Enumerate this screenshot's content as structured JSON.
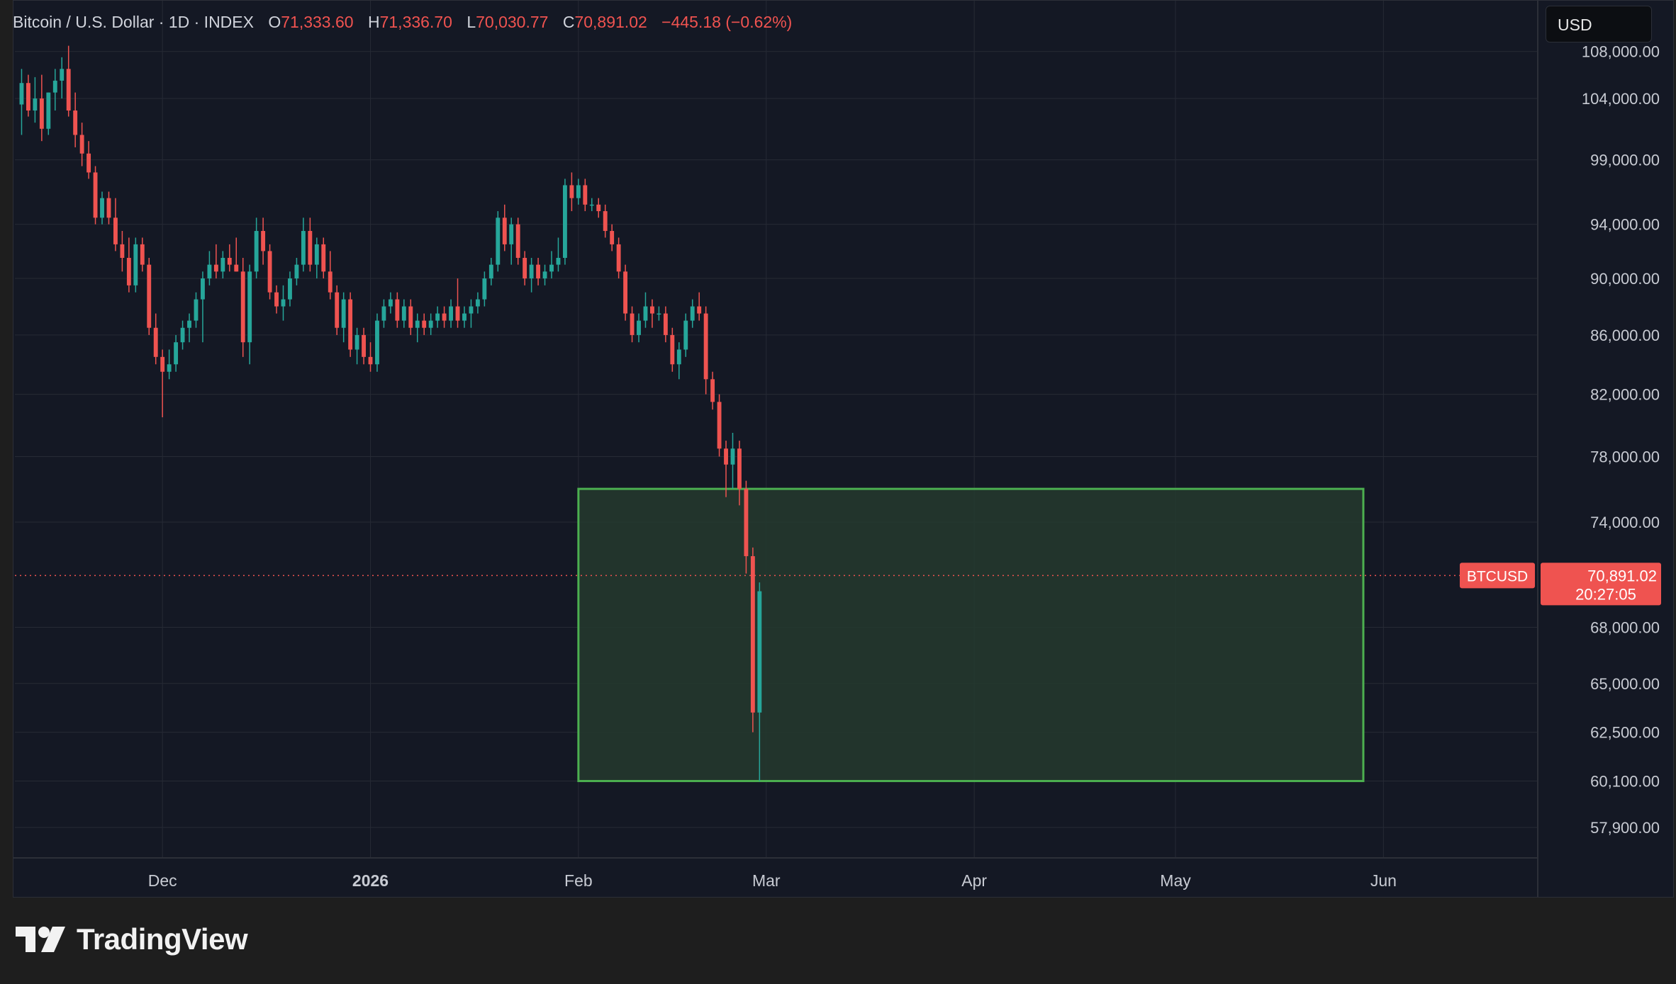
{
  "legend": {
    "symbol_text": "Bitcoin / U.S. Dollar · 1D · INDEX",
    "o_label": "O",
    "o_value": "71,333.60",
    "h_label": "H",
    "h_value": "71,336.70",
    "l_label": "L",
    "l_value": "70,030.77",
    "c_label": "C",
    "c_value": "70,891.02",
    "change": "−445.18 (−0.62%)"
  },
  "currency": "USD",
  "brand": "TradingView",
  "colors": {
    "up": "#26a69a",
    "down": "#ef5350",
    "background": "#141824",
    "zone_fill": "#243a2e",
    "zone_border": "#4caf50"
  },
  "chart_data": {
    "type": "candlestick",
    "symbol": "BTCUSD",
    "interval": "1D",
    "x_tick_labels": [
      "Dec",
      "2026",
      "Feb",
      "Mar",
      "Apr",
      "May",
      "Jun"
    ],
    "x_ticks": [
      "2025-12-01",
      "2026-01-01",
      "2026-02-01",
      "2026-03-01",
      "2026-04-01",
      "2026-05-01",
      "2026-06-01"
    ],
    "y_tick_labels": [
      "108,000.00",
      "104,000.00",
      "99,000.00",
      "94,000.00",
      "90,000.00",
      "86,000.00",
      "82,000.00",
      "78,000.00",
      "74,000.00",
      "68,000.00",
      "65,000.00",
      "62,500.00",
      "60,100.00",
      "57,900.00"
    ],
    "y_ticks": [
      108000,
      104000,
      99000,
      94000,
      90000,
      86000,
      82000,
      78000,
      74000,
      68000,
      65000,
      62500,
      60100,
      57900
    ],
    "y_scale": "log",
    "ylim": [
      56500,
      112500
    ],
    "xlim": [
      "2025-11-09",
      "2026-06-24"
    ],
    "grid": true,
    "last_price": "70,891.02",
    "countdown": "20:27:05",
    "price_label": "BTCUSD",
    "range_box": {
      "start": "2026-02-01",
      "end": "2026-05-29",
      "high": 76000,
      "low": 60100
    },
    "candles": [
      {
        "d": "2025-11-10",
        "o": 103500,
        "h": 106500,
        "l": 101000,
        "c": 105300
      },
      {
        "d": "2025-11-11",
        "o": 105300,
        "h": 106000,
        "l": 102500,
        "c": 103000
      },
      {
        "d": "2025-11-12",
        "o": 103000,
        "h": 105800,
        "l": 102000,
        "c": 104000
      },
      {
        "d": "2025-11-13",
        "o": 104000,
        "h": 106000,
        "l": 100500,
        "c": 101500
      },
      {
        "d": "2025-11-14",
        "o": 101500,
        "h": 104500,
        "l": 101000,
        "c": 104500
      },
      {
        "d": "2025-11-15",
        "o": 104500,
        "h": 106500,
        "l": 103000,
        "c": 105500
      },
      {
        "d": "2025-11-16",
        "o": 105500,
        "h": 107500,
        "l": 104000,
        "c": 106500
      },
      {
        "d": "2025-11-17",
        "o": 106500,
        "h": 108500,
        "l": 102500,
        "c": 103000
      },
      {
        "d": "2025-11-18",
        "o": 103000,
        "h": 104500,
        "l": 100000,
        "c": 101000
      },
      {
        "d": "2025-11-19",
        "o": 101000,
        "h": 102000,
        "l": 98500,
        "c": 99500
      },
      {
        "d": "2025-11-20",
        "o": 99500,
        "h": 100500,
        "l": 97500,
        "c": 98000
      },
      {
        "d": "2025-11-21",
        "o": 98000,
        "h": 98500,
        "l": 94000,
        "c": 94500
      },
      {
        "d": "2025-11-22",
        "o": 94500,
        "h": 96500,
        "l": 94000,
        "c": 96000
      },
      {
        "d": "2025-11-23",
        "o": 96000,
        "h": 96500,
        "l": 94000,
        "c": 94500
      },
      {
        "d": "2025-11-24",
        "o": 94500,
        "h": 96000,
        "l": 92000,
        "c": 92500
      },
      {
        "d": "2025-11-25",
        "o": 92500,
        "h": 93500,
        "l": 90500,
        "c": 91500
      },
      {
        "d": "2025-11-26",
        "o": 91500,
        "h": 93000,
        "l": 89000,
        "c": 89500
      },
      {
        "d": "2025-11-27",
        "o": 89500,
        "h": 93000,
        "l": 89000,
        "c": 92500
      },
      {
        "d": "2025-11-28",
        "o": 92500,
        "h": 93000,
        "l": 90500,
        "c": 91000
      },
      {
        "d": "2025-11-29",
        "o": 91000,
        "h": 91500,
        "l": 86000,
        "c": 86500
      },
      {
        "d": "2025-11-30",
        "o": 86500,
        "h": 87500,
        "l": 84000,
        "c": 84500
      },
      {
        "d": "2025-12-01",
        "o": 84500,
        "h": 85000,
        "l": 80500,
        "c": 83500
      },
      {
        "d": "2025-12-02",
        "o": 83500,
        "h": 85000,
        "l": 83000,
        "c": 84000
      },
      {
        "d": "2025-12-03",
        "o": 84000,
        "h": 86000,
        "l": 83500,
        "c": 85500
      },
      {
        "d": "2025-12-04",
        "o": 85500,
        "h": 87000,
        "l": 85000,
        "c": 86500
      },
      {
        "d": "2025-12-05",
        "o": 86500,
        "h": 87500,
        "l": 85500,
        "c": 87000
      },
      {
        "d": "2025-12-06",
        "o": 87000,
        "h": 89000,
        "l": 86500,
        "c": 88500
      },
      {
        "d": "2025-12-07",
        "o": 88500,
        "h": 90500,
        "l": 85500,
        "c": 90000
      },
      {
        "d": "2025-12-08",
        "o": 90000,
        "h": 92000,
        "l": 89500,
        "c": 91000
      },
      {
        "d": "2025-12-09",
        "o": 91000,
        "h": 92500,
        "l": 90000,
        "c": 90500
      },
      {
        "d": "2025-12-10",
        "o": 90500,
        "h": 92000,
        "l": 90000,
        "c": 91500
      },
      {
        "d": "2025-12-11",
        "o": 91500,
        "h": 92500,
        "l": 90500,
        "c": 91000
      },
      {
        "d": "2025-12-12",
        "o": 91000,
        "h": 93000,
        "l": 90500,
        "c": 90500
      },
      {
        "d": "2025-12-13",
        "o": 90500,
        "h": 91500,
        "l": 84500,
        "c": 85500
      },
      {
        "d": "2025-12-14",
        "o": 85500,
        "h": 91000,
        "l": 84000,
        "c": 90500
      },
      {
        "d": "2025-12-15",
        "o": 90500,
        "h": 94500,
        "l": 90000,
        "c": 93500
      },
      {
        "d": "2025-12-16",
        "o": 93500,
        "h": 94500,
        "l": 91000,
        "c": 92000
      },
      {
        "d": "2025-12-17",
        "o": 92000,
        "h": 92500,
        "l": 88500,
        "c": 89000
      },
      {
        "d": "2025-12-18",
        "o": 89000,
        "h": 89500,
        "l": 87500,
        "c": 88000
      },
      {
        "d": "2025-12-19",
        "o": 88000,
        "h": 89500,
        "l": 87000,
        "c": 88500
      },
      {
        "d": "2025-12-20",
        "o": 88500,
        "h": 90500,
        "l": 88000,
        "c": 90000
      },
      {
        "d": "2025-12-21",
        "o": 90000,
        "h": 91500,
        "l": 89500,
        "c": 91000
      },
      {
        "d": "2025-12-22",
        "o": 91000,
        "h": 94500,
        "l": 90500,
        "c": 93500
      },
      {
        "d": "2025-12-23",
        "o": 93500,
        "h": 94500,
        "l": 90500,
        "c": 91000
      },
      {
        "d": "2025-12-24",
        "o": 91000,
        "h": 93000,
        "l": 90000,
        "c": 92500
      },
      {
        "d": "2025-12-25",
        "o": 92500,
        "h": 93000,
        "l": 90000,
        "c": 90500
      },
      {
        "d": "2025-12-26",
        "o": 90500,
        "h": 92000,
        "l": 88500,
        "c": 89000
      },
      {
        "d": "2025-12-27",
        "o": 89000,
        "h": 89500,
        "l": 86000,
        "c": 86500
      },
      {
        "d": "2025-12-28",
        "o": 86500,
        "h": 89000,
        "l": 85500,
        "c": 88500
      },
      {
        "d": "2025-12-29",
        "o": 88500,
        "h": 89000,
        "l": 84500,
        "c": 85000
      },
      {
        "d": "2025-12-30",
        "o": 85000,
        "h": 86500,
        "l": 84000,
        "c": 86000
      },
      {
        "d": "2025-12-31",
        "o": 86000,
        "h": 86500,
        "l": 84000,
        "c": 84500
      },
      {
        "d": "2026-01-01",
        "o": 84500,
        "h": 85500,
        "l": 83500,
        "c": 84000
      },
      {
        "d": "2026-01-02",
        "o": 84000,
        "h": 87500,
        "l": 83500,
        "c": 87000
      },
      {
        "d": "2026-01-03",
        "o": 87000,
        "h": 88500,
        "l": 86500,
        "c": 88000
      },
      {
        "d": "2026-01-04",
        "o": 88000,
        "h": 89000,
        "l": 87500,
        "c": 88500
      },
      {
        "d": "2026-01-05",
        "o": 88500,
        "h": 89000,
        "l": 86500,
        "c": 87000
      },
      {
        "d": "2026-01-06",
        "o": 87000,
        "h": 88500,
        "l": 86500,
        "c": 88000
      },
      {
        "d": "2026-01-07",
        "o": 88000,
        "h": 88500,
        "l": 86000,
        "c": 86500
      },
      {
        "d": "2026-01-08",
        "o": 86500,
        "h": 87500,
        "l": 85500,
        "c": 87000
      },
      {
        "d": "2026-01-09",
        "o": 87000,
        "h": 87500,
        "l": 86000,
        "c": 86500
      },
      {
        "d": "2026-01-10",
        "o": 86500,
        "h": 87500,
        "l": 86000,
        "c": 87000
      },
      {
        "d": "2026-01-11",
        "o": 87000,
        "h": 88000,
        "l": 86500,
        "c": 87500
      },
      {
        "d": "2026-01-12",
        "o": 87500,
        "h": 88000,
        "l": 86500,
        "c": 87000
      },
      {
        "d": "2026-01-13",
        "o": 87000,
        "h": 88500,
        "l": 86500,
        "c": 88000
      },
      {
        "d": "2026-01-14",
        "o": 88000,
        "h": 90000,
        "l": 86500,
        "c": 87000
      },
      {
        "d": "2026-01-15",
        "o": 87000,
        "h": 88000,
        "l": 86500,
        "c": 87500
      },
      {
        "d": "2026-01-16",
        "o": 87500,
        "h": 88500,
        "l": 86500,
        "c": 88000
      },
      {
        "d": "2026-01-17",
        "o": 88000,
        "h": 89000,
        "l": 87500,
        "c": 88500
      },
      {
        "d": "2026-01-18",
        "o": 88500,
        "h": 90500,
        "l": 88000,
        "c": 90000
      },
      {
        "d": "2026-01-19",
        "o": 90000,
        "h": 91500,
        "l": 89500,
        "c": 91000
      },
      {
        "d": "2026-01-20",
        "o": 91000,
        "h": 95000,
        "l": 90500,
        "c": 94500
      },
      {
        "d": "2026-01-21",
        "o": 94500,
        "h": 95500,
        "l": 92000,
        "c": 92500
      },
      {
        "d": "2026-01-22",
        "o": 92500,
        "h": 94500,
        "l": 91000,
        "c": 94000
      },
      {
        "d": "2026-01-23",
        "o": 94000,
        "h": 94500,
        "l": 91000,
        "c": 91500
      },
      {
        "d": "2026-01-24",
        "o": 91500,
        "h": 92000,
        "l": 89500,
        "c": 90000
      },
      {
        "d": "2026-01-25",
        "o": 90000,
        "h": 91500,
        "l": 89000,
        "c": 91000
      },
      {
        "d": "2026-01-26",
        "o": 91000,
        "h": 91500,
        "l": 89500,
        "c": 90000
      },
      {
        "d": "2026-01-27",
        "o": 90000,
        "h": 91000,
        "l": 89500,
        "c": 90500
      },
      {
        "d": "2026-01-28",
        "o": 90500,
        "h": 92000,
        "l": 90000,
        "c": 91000
      },
      {
        "d": "2026-01-29",
        "o": 91000,
        "h": 93000,
        "l": 90500,
        "c": 91500
      },
      {
        "d": "2026-01-30",
        "o": 91500,
        "h": 97500,
        "l": 91000,
        "c": 97000
      },
      {
        "d": "2026-01-31",
        "o": 97000,
        "h": 98000,
        "l": 95000,
        "c": 96000
      },
      {
        "d": "2026-02-01",
        "o": 96000,
        "h": 97500,
        "l": 95500,
        "c": 97000
      },
      {
        "d": "2026-02-02",
        "o": 97000,
        "h": 97500,
        "l": 95000,
        "c": 95500
      },
      {
        "d": "2026-02-03",
        "o": 95500,
        "h": 96000,
        "l": 95000,
        "c": 95500
      },
      {
        "d": "2026-02-04",
        "o": 95500,
        "h": 96000,
        "l": 94500,
        "c": 95000
      },
      {
        "d": "2026-02-05",
        "o": 95000,
        "h": 95500,
        "l": 93000,
        "c": 93500
      },
      {
        "d": "2026-02-06",
        "o": 93500,
        "h": 94000,
        "l": 92000,
        "c": 92500
      },
      {
        "d": "2026-02-07",
        "o": 92500,
        "h": 93000,
        "l": 90000,
        "c": 90500
      },
      {
        "d": "2026-02-08",
        "o": 90500,
        "h": 91000,
        "l": 87000,
        "c": 87500
      },
      {
        "d": "2026-02-09",
        "o": 87500,
        "h": 88000,
        "l": 85500,
        "c": 86000
      },
      {
        "d": "2026-02-10",
        "o": 86000,
        "h": 87500,
        "l": 85500,
        "c": 87000
      },
      {
        "d": "2026-02-11",
        "o": 87000,
        "h": 89000,
        "l": 86500,
        "c": 88000
      },
      {
        "d": "2026-02-12",
        "o": 88000,
        "h": 88500,
        "l": 86500,
        "c": 87500
      },
      {
        "d": "2026-02-13",
        "o": 87500,
        "h": 88000,
        "l": 87000,
        "c": 87500
      },
      {
        "d": "2026-02-14",
        "o": 87500,
        "h": 88000,
        "l": 85500,
        "c": 86000
      },
      {
        "d": "2026-02-15",
        "o": 86000,
        "h": 86500,
        "l": 83500,
        "c": 84000
      },
      {
        "d": "2026-02-16",
        "o": 84000,
        "h": 85500,
        "l": 83000,
        "c": 85000
      },
      {
        "d": "2026-02-17",
        "o": 85000,
        "h": 87500,
        "l": 84500,
        "c": 87000
      },
      {
        "d": "2026-02-18",
        "o": 87000,
        "h": 88500,
        "l": 86500,
        "c": 88000
      },
      {
        "d": "2026-02-19",
        "o": 88000,
        "h": 89000,
        "l": 87000,
        "c": 87500
      },
      {
        "d": "2026-02-20",
        "o": 87500,
        "h": 88000,
        "l": 82000,
        "c": 83000
      },
      {
        "d": "2026-02-21",
        "o": 83000,
        "h": 83500,
        "l": 81000,
        "c": 81500
      },
      {
        "d": "2026-02-22",
        "o": 81500,
        "h": 82000,
        "l": 78000,
        "c": 78500
      },
      {
        "d": "2026-02-23",
        "o": 78500,
        "h": 79000,
        "l": 75500,
        "c": 77500
      },
      {
        "d": "2026-02-24",
        "o": 77500,
        "h": 79500,
        "l": 76000,
        "c": 78500
      },
      {
        "d": "2026-02-25",
        "o": 78500,
        "h": 79000,
        "l": 75000,
        "c": 76000
      },
      {
        "d": "2026-02-26",
        "o": 76000,
        "h": 76500,
        "l": 71000,
        "c": 72000
      },
      {
        "d": "2026-02-27",
        "o": 72000,
        "h": 72500,
        "l": 62500,
        "c": 63500
      },
      {
        "d": "2026-02-28",
        "o": 63500,
        "h": 70500,
        "l": 60100,
        "c": 70000
      }
    ]
  }
}
